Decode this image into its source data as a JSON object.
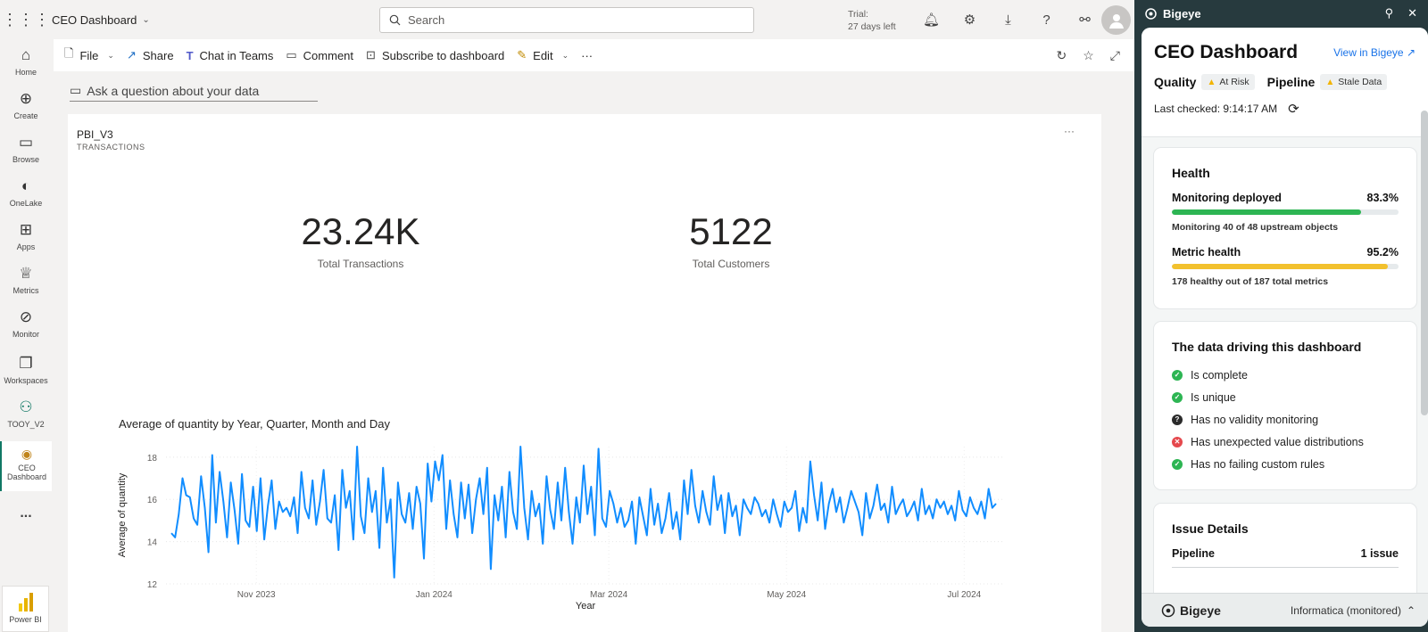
{
  "topbar": {
    "app_title": "CEO Dashboard",
    "search_placeholder": "Search",
    "trial_line1": "Trial:",
    "trial_line2": "27 days left"
  },
  "leftnav": {
    "items": [
      {
        "label": "Home",
        "icon": "home-icon"
      },
      {
        "label": "Create",
        "icon": "plus-icon"
      },
      {
        "label": "Browse",
        "icon": "folder-icon"
      },
      {
        "label": "OneLake",
        "icon": "onelake-icon"
      },
      {
        "label": "Apps",
        "icon": "apps-icon"
      },
      {
        "label": "Metrics",
        "icon": "trophy-icon"
      },
      {
        "label": "Monitor",
        "icon": "monitor-icon"
      },
      {
        "label": "Workspaces",
        "icon": "workspaces-icon"
      },
      {
        "label": "TOOY_V2",
        "icon": "workspace-group-icon"
      },
      {
        "label_line1": "CEO",
        "label_line2": "Dashboard",
        "icon": "dashboard-icon"
      }
    ],
    "more": "...",
    "brand": "Power BI"
  },
  "toolbar": {
    "file": "File",
    "share": "Share",
    "chat": "Chat in Teams",
    "comment": "Comment",
    "subscribe": "Subscribe to dashboard",
    "edit": "Edit",
    "more": "···"
  },
  "qa": {
    "placeholder": "Ask a question about your data"
  },
  "tile": {
    "title": "PBI_V3",
    "subtitle": "TRANSACTIONS",
    "more": "···",
    "kpis": [
      {
        "value": "23.24K",
        "label": "Total Transactions"
      },
      {
        "value": "5122",
        "label": "Total Customers"
      }
    ]
  },
  "chart_data": {
    "type": "line",
    "title": "Average of quantity by Year, Quarter, Month and Day",
    "xlabel": "Year",
    "ylabel": "Average of quantity",
    "ylim": [
      12,
      18.5
    ],
    "yticks": [
      12,
      14,
      16,
      18
    ],
    "xticks": [
      "Nov 2023",
      "Jan 2024",
      "Mar 2024",
      "May 2024",
      "Jul 2024"
    ],
    "x_range": [
      "2023-10-01",
      "2024-07-15"
    ],
    "color": "#118dff",
    "series": [
      {
        "values": [
          14.4,
          14.2,
          15.3,
          17.0,
          16.2,
          16.1,
          15.1,
          14.8,
          17.1,
          15.6,
          13.5,
          18.1,
          14.9,
          17.3,
          15.9,
          14.2,
          16.8,
          15.5,
          13.9,
          17.2,
          15.0,
          14.7,
          16.6,
          14.5,
          17.0,
          14.1,
          15.7,
          16.9,
          14.6,
          15.9,
          15.4,
          15.6,
          15.2,
          16.1,
          14.4,
          17.3,
          15.6,
          15.1,
          16.9,
          14.8,
          15.9,
          17.4,
          15.1,
          14.9,
          16.2,
          13.6,
          17.4,
          15.6,
          16.4,
          14.1,
          18.5,
          15.2,
          14.4,
          17.0,
          15.4,
          16.4,
          13.7,
          17.5,
          14.9,
          16.0,
          12.3,
          16.8,
          15.3,
          14.9,
          16.3,
          14.6,
          16.6,
          15.8,
          13.2,
          17.7,
          15.9,
          17.8,
          16.9,
          18.1,
          14.6,
          16.9,
          15.3,
          14.2,
          16.8,
          15.1,
          16.7,
          14.4,
          16.0,
          17.0,
          15.3,
          17.5,
          12.7,
          16.2,
          15.0,
          16.6,
          14.2,
          17.3,
          15.4,
          14.6,
          18.5,
          15.6,
          14.1,
          16.4,
          15.2,
          15.8,
          13.9,
          17.1,
          15.5,
          14.6,
          16.8,
          15.0,
          17.5,
          15.4,
          13.9,
          16.1,
          14.9,
          17.6,
          15.3,
          16.6,
          14.3,
          18.4,
          15.1,
          14.7,
          16.4,
          15.8,
          14.9,
          15.6,
          14.7,
          15.0,
          15.9,
          13.9,
          16.1,
          15.2,
          14.3,
          16.5,
          14.8,
          15.8,
          14.4,
          15.1,
          16.3,
          14.6,
          15.4,
          14.1,
          16.9,
          15.3,
          17.4,
          15.7,
          14.9,
          16.4,
          15.4,
          14.8,
          17.1,
          15.5,
          16.2,
          14.4,
          16.3,
          15.2,
          15.7,
          14.3,
          16.0,
          15.6,
          15.3,
          16.1,
          15.8,
          15.2,
          15.5,
          14.9,
          16.0,
          15.3,
          14.7,
          15.9,
          15.4,
          15.6,
          16.4,
          14.5,
          15.6,
          14.9,
          17.8,
          16.2,
          15.0,
          16.8,
          14.6,
          15.8,
          16.5,
          15.4,
          16.1,
          14.9,
          15.6,
          16.4,
          15.9,
          15.4,
          14.3,
          16.3,
          15.1,
          15.7,
          16.7,
          15.5,
          15.8,
          14.9,
          16.6,
          15.3,
          15.7,
          16.0,
          15.2,
          15.5,
          15.9,
          15.0,
          16.5,
          15.3,
          15.7,
          15.1,
          16.0,
          15.6,
          15.9,
          15.3,
          15.7,
          15.0,
          16.4,
          15.5,
          15.2,
          16.1,
          15.6,
          15.3,
          15.9,
          15.1,
          16.5,
          15.6,
          15.8
        ]
      }
    ]
  },
  "bigeye": {
    "header": "Bigeye",
    "title": "CEO Dashboard",
    "view_link": "View in Bigeye",
    "quality_label": "Quality",
    "quality_badge": "At Risk",
    "pipeline_label": "Pipeline",
    "pipeline_badge": "Stale Data",
    "last_checked": "Last checked: 9:14:17 AM",
    "health": {
      "title": "Health",
      "monitoring": {
        "label": "Monitoring deployed",
        "pct": "83.3%",
        "value": 0.833,
        "sub": "Monitoring 40 of 48 upstream objects",
        "color": "#2db553"
      },
      "metric": {
        "label": "Metric health",
        "pct": "95.2%",
        "value": 0.952,
        "sub": "178 healthy out of 187 total metrics",
        "color": "#f2c12e"
      }
    },
    "driving": {
      "title": "The data driving this dashboard",
      "items": [
        {
          "text": "Is complete",
          "status": "ok"
        },
        {
          "text": "Is unique",
          "status": "ok"
        },
        {
          "text": "Has no validity monitoring",
          "status": "unknown"
        },
        {
          "text": "Has unexpected value distributions",
          "status": "error"
        },
        {
          "text": "Has no failing custom rules",
          "status": "ok"
        }
      ]
    },
    "issues": {
      "title": "Issue Details",
      "row_label": "Pipeline",
      "row_value": "1 issue"
    },
    "footer": {
      "brand": "Bigeye",
      "source": "Informatica (monitored)"
    }
  }
}
